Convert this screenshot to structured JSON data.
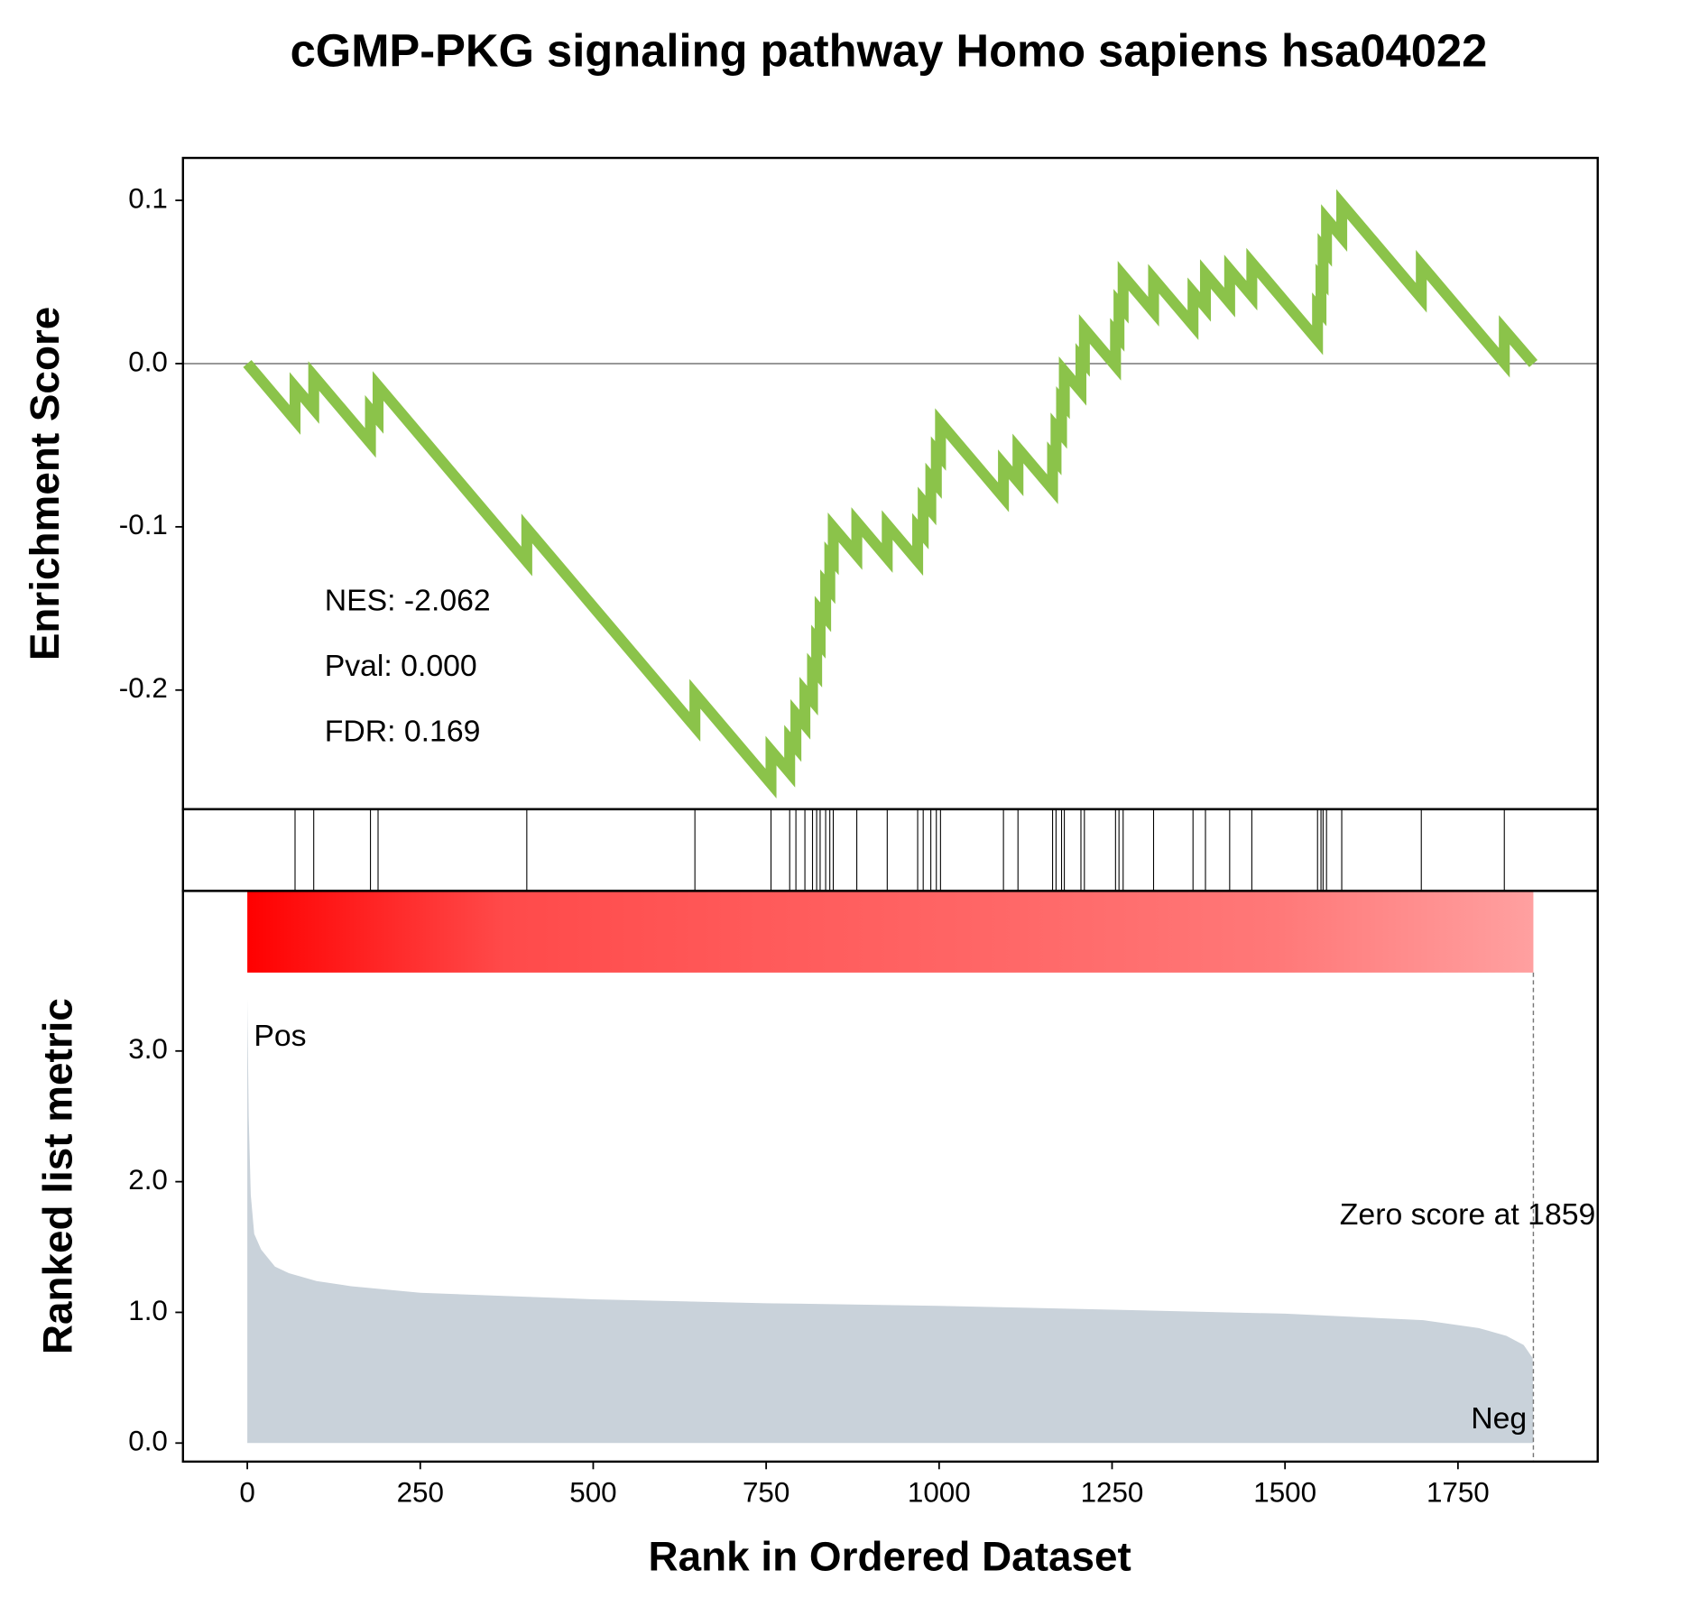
{
  "chart_data": {
    "type": "gsea",
    "title": "cGMP-PKG signaling pathway Homo sapiens hsa04022",
    "xlabel": "Rank in Ordered Dataset",
    "xlim": [
      -93,
      1952
    ],
    "xticks": [
      0,
      250,
      500,
      750,
      1000,
      1250,
      1500,
      1750
    ],
    "es": {
      "ylabel": "Enrichment Score",
      "color": "#8bc34a",
      "ylim": [
        -0.273,
        0.126
      ],
      "yticks": [
        0.1,
        {
          "value": 0,
          "label": "0.0"
        },
        -0.1,
        -0.2
      ],
      "x": [
        0,
        69,
        69,
        96,
        96,
        178,
        178,
        189,
        189,
        404,
        404,
        647,
        647,
        757,
        757,
        784,
        784,
        793,
        793,
        806,
        806,
        817,
        817,
        823,
        823,
        828,
        828,
        836,
        836,
        842,
        842,
        847,
        847,
        881,
        881,
        925,
        925,
        969,
        969,
        977,
        977,
        988,
        988,
        996,
        996,
        1002,
        1002,
        1093,
        1093,
        1114,
        1114,
        1164,
        1164,
        1169,
        1169,
        1177,
        1177,
        1181,
        1181,
        1205,
        1205,
        1210,
        1210,
        1255,
        1255,
        1260,
        1260,
        1266,
        1266,
        1310,
        1310,
        1367,
        1367,
        1385,
        1385,
        1420,
        1420,
        1452,
        1452,
        1547,
        1547,
        1552,
        1552,
        1555,
        1555,
        1560,
        1560,
        1582,
        1582,
        1697,
        1697,
        1817,
        1817,
        1859
      ],
      "values": [
        0,
        -0.0345,
        -0.0143,
        -0.0278,
        -0.0076,
        -0.0486,
        -0.0284,
        -0.0339,
        -0.0137,
        -0.1212,
        -0.101,
        -0.2225,
        -0.2023,
        -0.2573,
        -0.2371,
        -0.2506,
        -0.2304,
        -0.2349,
        -0.2147,
        -0.2212,
        -0.201,
        -0.2065,
        -0.1863,
        -0.1893,
        -0.1691,
        -0.1716,
        -0.1514,
        -0.1554,
        -0.1352,
        -0.1382,
        -0.118,
        -0.1205,
        -0.1003,
        -0.1173,
        -0.0971,
        -0.1191,
        -0.0989,
        -0.1209,
        -0.1007,
        -0.1047,
        -0.0845,
        -0.09,
        -0.0698,
        -0.0738,
        -0.0536,
        -0.0566,
        -0.0364,
        -0.0819,
        -0.0617,
        -0.0722,
        -0.052,
        -0.077,
        -0.0568,
        -0.0593,
        -0.0391,
        -0.0431,
        -0.0229,
        -0.0249,
        -0.0047,
        -0.0167,
        0.0035,
        0.001,
        0.0212,
        -0.0013,
        0.0189,
        0.0164,
        0.0366,
        0.0336,
        0.0538,
        0.0318,
        0.052,
        0.0235,
        0.0437,
        0.0347,
        0.0549,
        0.0374,
        0.0576,
        0.0416,
        0.0618,
        0.0143,
        0.0345,
        0.032,
        0.0522,
        0.0507,
        0.0709,
        0.0684,
        0.0886,
        0.0776,
        0.0978,
        0.0403,
        0.0605,
        0.0005,
        0.0207,
        0
      ]
    },
    "hits": [
      69,
      96,
      178,
      189,
      404,
      647,
      757,
      784,
      793,
      806,
      817,
      823,
      828,
      836,
      842,
      847,
      881,
      925,
      969,
      977,
      988,
      996,
      1002,
      1093,
      1114,
      1164,
      1169,
      1177,
      1181,
      1205,
      1210,
      1255,
      1260,
      1266,
      1310,
      1367,
      1385,
      1420,
      1452,
      1547,
      1552,
      1555,
      1560,
      1582,
      1697,
      1817
    ],
    "heatmap_colors": [
      "#ff0000",
      "#ff4a4a",
      "#ff5a5a",
      "#ff6868",
      "#ff7878",
      "#ffa0a0"
    ],
    "metric": {
      "ylabel": "Ranked list metric",
      "color": "#c9d2da",
      "ylim": [
        -0.142,
        4.225
      ],
      "yticks": [
        {
          "value": 0,
          "label": "0.0"
        },
        {
          "value": 1,
          "label": "1.0"
        },
        {
          "value": 2,
          "label": "2.0"
        },
        {
          "value": 3,
          "label": "3.0"
        }
      ],
      "x": [
        0,
        2,
        5,
        10,
        20,
        40,
        60,
        100,
        150,
        250,
        500,
        750,
        1000,
        1250,
        1500,
        1700,
        1780,
        1820,
        1845,
        1858,
        1859
      ],
      "values": [
        3.4,
        2.5,
        1.9,
        1.6,
        1.48,
        1.35,
        1.3,
        1.24,
        1.2,
        1.15,
        1.1,
        1.07,
        1.05,
        1.02,
        0.99,
        0.94,
        0.88,
        0.82,
        0.75,
        0.65,
        0
      ]
    },
    "zero_rank": 1859,
    "annotations": {
      "nes": "NES: -2.062",
      "pval": "Pval: 0.000",
      "fdr": "FDR: 0.169",
      "pos": "Pos",
      "neg": "Neg",
      "zero": "Zero score at 1859"
    }
  }
}
